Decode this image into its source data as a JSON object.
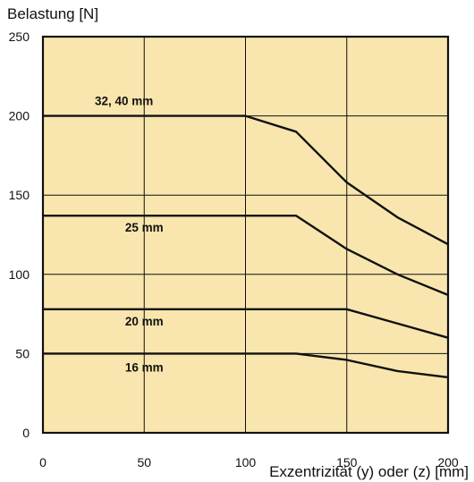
{
  "chart_data": {
    "type": "line",
    "ylabel": "Belastung [N]",
    "xlabel": "Exzentrizität (y) oder (z) [mm]",
    "xlim": [
      0,
      200
    ],
    "ylim": [
      0,
      250
    ],
    "x_ticks": [
      "0",
      "50",
      "100",
      "150",
      "200"
    ],
    "y_ticks": [
      "0",
      "50",
      "100",
      "150",
      "200",
      "250"
    ],
    "grid": true,
    "legend": "none",
    "colors": {
      "plot_bg": "#f8e6ae",
      "line": "#111111",
      "grid": "#111111"
    },
    "series": [
      {
        "name": "32, 40 mm",
        "x": [
          0,
          100,
          125,
          150,
          175,
          200
        ],
        "y": [
          200,
          200,
          190,
          158,
          136,
          119
        ]
      },
      {
        "name": "25 mm",
        "x": [
          0,
          125,
          150,
          175,
          200
        ],
        "y": [
          137,
          137,
          116,
          100,
          87
        ]
      },
      {
        "name": "20 mm",
        "x": [
          0,
          150,
          175,
          200
        ],
        "y": [
          78,
          78,
          69,
          60
        ]
      },
      {
        "name": "16 mm",
        "x": [
          0,
          125,
          150,
          175,
          200
        ],
        "y": [
          50,
          50,
          46,
          39,
          35
        ]
      }
    ]
  }
}
